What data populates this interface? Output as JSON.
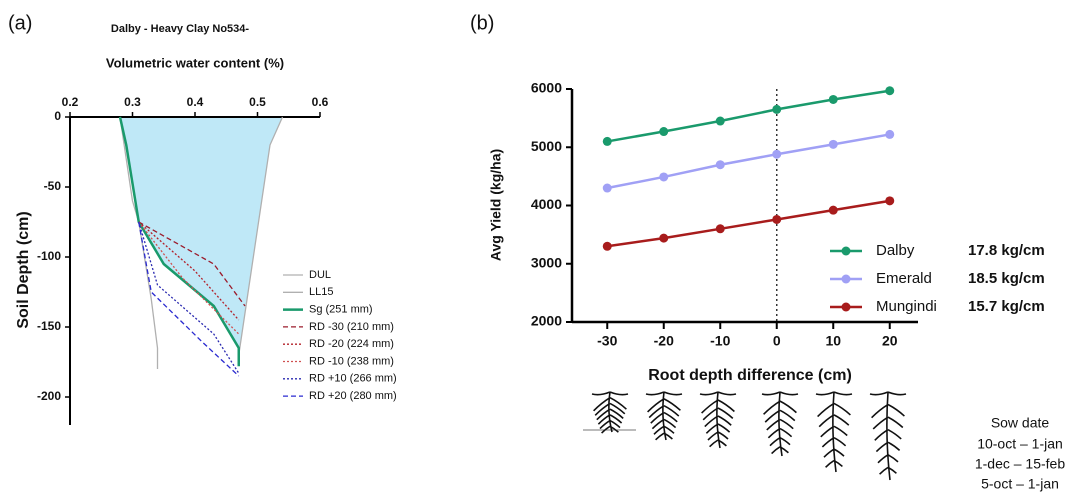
{
  "chart_data": [
    {
      "type": "line",
      "panel": "(a)",
      "title": "Dalby - Heavy Clay No534-",
      "x_label": "Volumetric water content (%)",
      "y_label": "Soil Depth (cm)",
      "xlim": [
        0.2,
        0.6
      ],
      "xticks": [
        0.2,
        0.3,
        0.4,
        0.5,
        0.6
      ],
      "ylim": [
        -220,
        0
      ],
      "yticks": [
        0,
        -50,
        -100,
        -150,
        -200
      ],
      "fill_color": "#bfe8f7",
      "series": [
        {
          "name": "DUL",
          "color": "#b0b0b0",
          "dash": "solid",
          "x": [
            0.54,
            0.52,
            0.47
          ],
          "y": [
            0,
            -20,
            -170
          ]
        },
        {
          "name": "LL15",
          "color": "#b0b0b0",
          "dash": "solid",
          "x": [
            0.28,
            0.3,
            0.31,
            0.33,
            0.34,
            0.34
          ],
          "y": [
            0,
            -60,
            -75,
            -130,
            -165,
            -180
          ]
        },
        {
          "name": "Sg (251 mm)",
          "color": "#1a9a6c",
          "dash": "solid",
          "x": [
            0.28,
            0.29,
            0.31,
            0.35,
            0.43,
            0.47,
            0.47
          ],
          "y": [
            0,
            -20,
            -75,
            -105,
            -135,
            -165,
            -178
          ]
        },
        {
          "name": "RD -30 (210 mm)",
          "color": "#9b1c2c",
          "dash": "dashed",
          "x": [
            0.31,
            0.43,
            0.48
          ],
          "y": [
            -75,
            -105,
            -135
          ]
        },
        {
          "name": "RD -20 (224 mm)",
          "color": "#b3202a",
          "dash": "dotted",
          "x": [
            0.31,
            0.4,
            0.47
          ],
          "y": [
            -75,
            -110,
            -145
          ]
        },
        {
          "name": "RD -10 (238 mm)",
          "color": "#d05050",
          "dash": "dotted",
          "x": [
            0.31,
            0.38,
            0.47
          ],
          "y": [
            -75,
            -115,
            -155
          ]
        },
        {
          "name": "RD +10 (266 mm)",
          "color": "#2a2ab0",
          "dash": "dotted",
          "x": [
            0.31,
            0.34,
            0.43,
            0.47
          ],
          "y": [
            -75,
            -120,
            -155,
            -183
          ]
        },
        {
          "name": "RD +20 (280 mm)",
          "color": "#2a2ad0",
          "dash": "dashed",
          "x": [
            0.31,
            0.33,
            0.41,
            0.47
          ],
          "y": [
            -75,
            -125,
            -160,
            -185
          ]
        }
      ]
    },
    {
      "type": "line",
      "panel": "(b)",
      "x_label": "Root depth difference (cm)",
      "y_label": "Avg Yield (kg/ha)",
      "x": [
        -30,
        -20,
        -10,
        0,
        10,
        20
      ],
      "xlim": [
        -35,
        25
      ],
      "xticks": [
        -30,
        -20,
        -10,
        0,
        10,
        20
      ],
      "ylim": [
        2000,
        6000
      ],
      "yticks": [
        2000,
        3000,
        4000,
        5000,
        6000
      ],
      "reference_x": 0,
      "sow_date_title": "Sow date",
      "series": [
        {
          "name": "Dalby",
          "color": "#1a9a6c",
          "values": [
            5100,
            5270,
            5450,
            5650,
            5820,
            5970
          ],
          "slope_label": "17.8 kg/cm",
          "sow_date": "10-oct – 1-jan"
        },
        {
          "name": "Emerald",
          "color": "#a0a0f5",
          "values": [
            4300,
            4490,
            4700,
            4880,
            5050,
            5220
          ],
          "slope_label": "18.5 kg/cm",
          "sow_date": "1-dec – 15-feb"
        },
        {
          "name": "Mungindi",
          "color": "#a81c1c",
          "values": [
            3300,
            3440,
            3600,
            3760,
            3920,
            4080
          ],
          "slope_label": "15.7 kg/cm",
          "sow_date": "5-oct – 1-jan"
        }
      ]
    }
  ]
}
